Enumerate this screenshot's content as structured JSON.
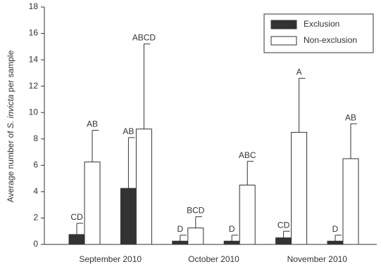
{
  "chart_data": {
    "type": "bar",
    "ylabel_parts": [
      "Average number of ",
      "S. invicta",
      " per sample"
    ],
    "categories": [
      null,
      null,
      null,
      null,
      null,
      null
    ],
    "group_labels": [
      "September 2010",
      "October 2010",
      "November 2010"
    ],
    "series": [
      {
        "name": "Exclusion",
        "color": "#333333",
        "values": [
          0.75,
          4.25,
          0.25,
          0.25,
          0.5,
          0.25
        ],
        "errors": [
          0.85,
          3.85,
          0.45,
          0.45,
          0.5,
          0.45
        ],
        "letters": [
          "CD",
          "AB",
          "D",
          "D",
          "CD",
          "D"
        ]
      },
      {
        "name": "Non-exclusion",
        "color": "#ffffff",
        "values": [
          6.25,
          8.75,
          1.25,
          4.5,
          8.5,
          6.5
        ],
        "errors": [
          2.4,
          6.45,
          0.85,
          1.8,
          4.1,
          2.65
        ],
        "letters": [
          "AB",
          "ABCD",
          "BCD",
          "ABC",
          "A",
          "AB"
        ]
      }
    ],
    "ylim": [
      0,
      18
    ],
    "yticks": [
      0,
      2,
      4,
      6,
      8,
      10,
      12,
      14,
      16,
      18
    ],
    "legend": "upper right"
  }
}
